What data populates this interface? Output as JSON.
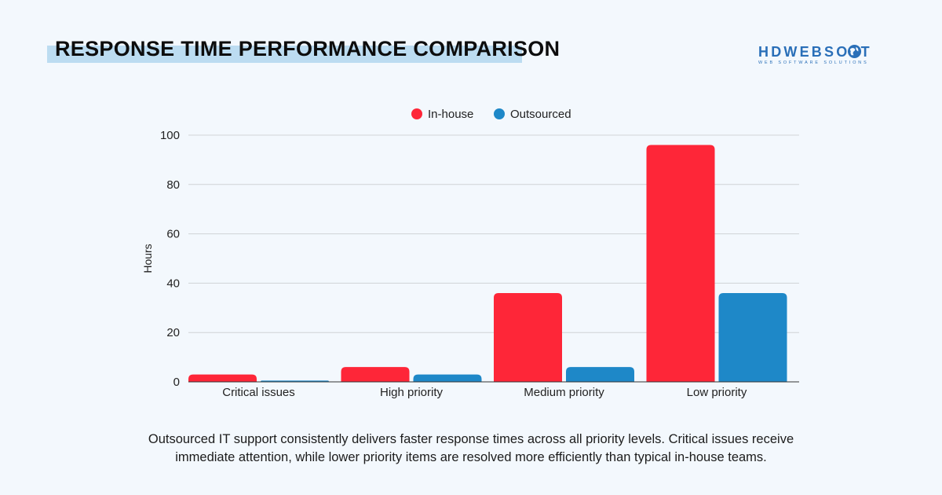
{
  "header": {
    "title": "RESPONSE TIME PERFORMANCE COMPARISON"
  },
  "logo": {
    "name": "HDWEBSOFT",
    "tagline": "WEB SOFTWARE SOLUTIONS"
  },
  "caption": "Outsourced IT support consistently delivers faster response times across all priority levels. Critical issues receive immediate attention, while lower priority items are resolved more efficiently than typical in-house teams.",
  "colors": {
    "in_house": "#fe2638",
    "outsourced": "#1e88c8",
    "grid": "#d0d3d6",
    "background": "#f3f8fd"
  },
  "chart_data": {
    "type": "bar",
    "title": "",
    "xlabel": "",
    "ylabel": "Hours",
    "ylim": [
      0,
      100
    ],
    "yticks": [
      0,
      20,
      40,
      60,
      80,
      100
    ],
    "grid": true,
    "legend_position": "top-center",
    "categories": [
      "Critical issues",
      "High priority",
      "Medium priority",
      "Low priority"
    ],
    "series": [
      {
        "name": "In-house",
        "color": "#fe2638",
        "values": [
          3,
          6,
          36,
          96
        ]
      },
      {
        "name": "Outsourced",
        "color": "#1e88c8",
        "values": [
          0.5,
          3,
          6,
          36
        ]
      }
    ]
  }
}
